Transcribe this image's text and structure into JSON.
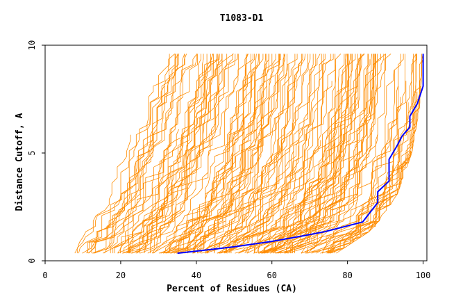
{
  "chart_data": {
    "type": "line",
    "title": "T1083-D1",
    "xlabel": "Percent of Residues (CA)",
    "ylabel": "Distance Cutoff, A",
    "xlim": [
      0,
      101
    ],
    "ylim": [
      0,
      10
    ],
    "x_ticks": [
      "0",
      "20",
      "40",
      "60",
      "80",
      "100"
    ],
    "y_ticks": [
      "0",
      "5",
      "10"
    ],
    "grid": false,
    "background_series": {
      "color": "#ff8c00",
      "count": 160,
      "description_of_envelope": {
        "left_edge": [
          [
            6.5,
            0.35
          ],
          [
            10,
            1.3
          ],
          [
            16,
            3.2
          ],
          [
            22,
            6.0
          ],
          [
            26,
            8.2
          ],
          [
            29,
            9.5
          ]
        ],
        "right_edge": [
          [
            77,
            0.35
          ],
          [
            87,
            1.5
          ],
          [
            93,
            3.0
          ],
          [
            97,
            5.0
          ],
          [
            99,
            7.0
          ],
          [
            100,
            9.5
          ]
        ]
      }
    },
    "series": [
      {
        "color": "#0000ff",
        "x": [
          35,
          40,
          50,
          60,
          68,
          74,
          84,
          88,
          88,
          91,
          91,
          93,
          94.5,
          96.5,
          96.5,
          98.5,
          100,
          100
        ],
        "y": [
          0.35,
          0.45,
          0.65,
          0.9,
          1.15,
          1.35,
          1.8,
          2.7,
          3.2,
          3.7,
          4.7,
          5.3,
          5.8,
          6.2,
          6.7,
          7.3,
          8.1,
          9.6
        ]
      }
    ]
  }
}
